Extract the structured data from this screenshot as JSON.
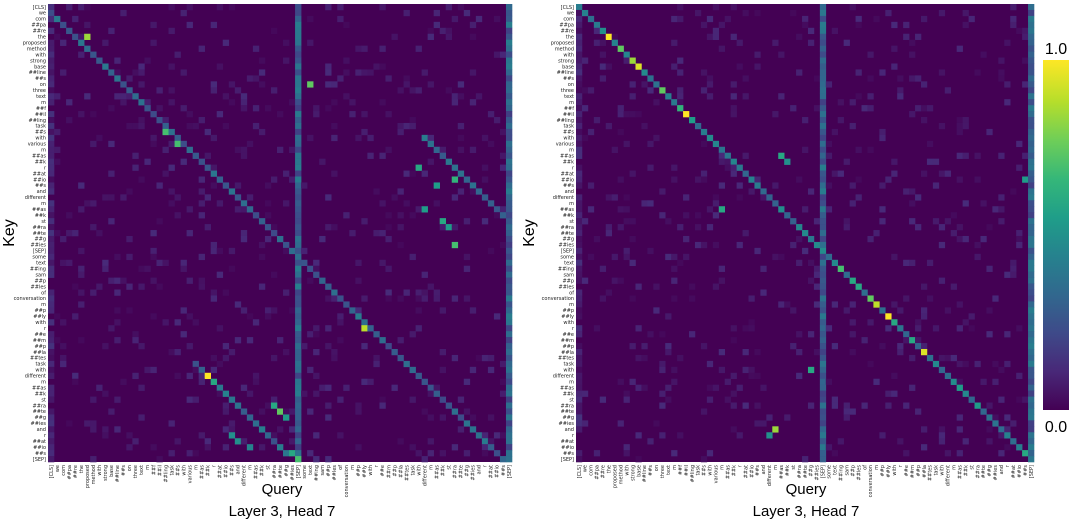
{
  "chart_data": [
    {
      "type": "heatmap",
      "ylabel": "Key",
      "xlabel": "Query",
      "caption": "Layer 3, Head 7",
      "tokens": [
        "[CLS]",
        "we",
        "com",
        "##pa",
        "##re",
        "the",
        "proposed",
        "method",
        "with",
        "strong",
        "base",
        "##line",
        "##s",
        "on",
        "three",
        "text",
        "m",
        "##f",
        "##il",
        "##ling",
        "task",
        "##s",
        "with",
        "various",
        "m",
        "##as",
        "##k",
        "r",
        "##at",
        "##io",
        "##s",
        "and",
        "different",
        "m",
        "##as",
        "##k",
        "st",
        "##ra",
        "##te",
        "##g",
        "##ies",
        "[SEP]",
        "some",
        "text",
        "##ing",
        "sam",
        "##p",
        "##les",
        "of",
        "conversation",
        "m",
        "##p",
        "##ly",
        "with",
        "r",
        "##e",
        "##m",
        "##p",
        "##la",
        "##tes",
        "task",
        "with",
        "different",
        "m",
        "##as",
        "##k",
        "st",
        "##ra",
        "##te",
        "##g",
        "##ies",
        "and",
        "r",
        "##at",
        "##io",
        "##s",
        "[SEP]"
      ],
      "stripe_columns": [
        41,
        76
      ],
      "peaks": [
        {
          "key": 5,
          "query": 6,
          "value": 0.85
        },
        {
          "key": 13,
          "query": 43,
          "value": 0.75
        },
        {
          "key": 21,
          "query": 19,
          "value": 0.7
        },
        {
          "key": 23,
          "query": 21,
          "value": 0.7
        },
        {
          "key": 27,
          "query": 61,
          "value": 0.6
        },
        {
          "key": 29,
          "query": 67,
          "value": 0.65
        },
        {
          "key": 30,
          "query": 64,
          "value": 0.55
        },
        {
          "key": 34,
          "query": 62,
          "value": 0.55
        },
        {
          "key": 36,
          "query": 65,
          "value": 0.6
        },
        {
          "key": 37,
          "query": 66,
          "value": 0.55
        },
        {
          "key": 40,
          "query": 67,
          "value": 0.7
        },
        {
          "key": 54,
          "query": 52,
          "value": 0.9
        },
        {
          "key": 62,
          "query": 26,
          "value": 1.0
        },
        {
          "key": 63,
          "query": 27,
          "value": 0.6
        },
        {
          "key": 67,
          "query": 37,
          "value": 0.6
        },
        {
          "key": 68,
          "query": 38,
          "value": 0.75
        },
        {
          "key": 69,
          "query": 39,
          "value": 0.55
        },
        {
          "key": 72,
          "query": 30,
          "value": 0.5
        },
        {
          "key": 73,
          "query": 31,
          "value": 0.5
        },
        {
          "key": 74,
          "query": 33,
          "value": 0.45
        },
        {
          "key": 75,
          "query": 40,
          "value": 0.6
        },
        {
          "key": 76,
          "query": 41,
          "value": 0.7
        }
      ],
      "vmin": 0.0,
      "vmax": 1.0
    },
    {
      "type": "heatmap",
      "ylabel": "Key",
      "xlabel": "Query",
      "caption": "Layer 3, Head 7",
      "tokens": [
        "[CLS]",
        "we",
        "com",
        "##pa",
        "##re",
        "the",
        "proposed",
        "method",
        "with",
        "strong",
        "base",
        "##line",
        "##s",
        "on",
        "three",
        "text",
        "m",
        "##f",
        "##il",
        "##ling",
        "task",
        "##s",
        "with",
        "various",
        "m",
        "##as",
        "##k",
        "r",
        "##at",
        "##io",
        "##s",
        "and",
        "different",
        "m",
        "##as",
        "##k",
        "st",
        "##ra",
        "##te",
        "##g",
        "##ies",
        "[SEP]",
        "some",
        "text",
        "##ing",
        "sam",
        "##p",
        "##les",
        "of",
        "conversation",
        "m",
        "##p",
        "##ly",
        "with",
        "r",
        "##e",
        "##m",
        "##p",
        "##la",
        "##tes",
        "task",
        "with",
        "different",
        "m",
        "##as",
        "##k",
        "st",
        "##ra",
        "##te",
        "##g",
        "##ies",
        "and",
        "r",
        "##at",
        "##io",
        "##s",
        "[SEP]"
      ],
      "stripe_columns": [
        41,
        76
      ],
      "peaks": [
        {
          "key": 5,
          "query": 5,
          "value": 1.0
        },
        {
          "key": 7,
          "query": 7,
          "value": 0.75
        },
        {
          "key": 9,
          "query": 9,
          "value": 0.85
        },
        {
          "key": 10,
          "query": 10,
          "value": 0.95
        },
        {
          "key": 14,
          "query": 14,
          "value": 0.75
        },
        {
          "key": 17,
          "query": 17,
          "value": 0.65
        },
        {
          "key": 18,
          "query": 18,
          "value": 1.0
        },
        {
          "key": 19,
          "query": 19,
          "value": 0.55
        },
        {
          "key": 25,
          "query": 34,
          "value": 0.6
        },
        {
          "key": 26,
          "query": 35,
          "value": 0.5
        },
        {
          "key": 29,
          "query": 75,
          "value": 0.55
        },
        {
          "key": 34,
          "query": 24,
          "value": 0.6
        },
        {
          "key": 44,
          "query": 44,
          "value": 0.7
        },
        {
          "key": 46,
          "query": 46,
          "value": 0.6
        },
        {
          "key": 47,
          "query": 47,
          "value": 0.6
        },
        {
          "key": 49,
          "query": 49,
          "value": 0.75
        },
        {
          "key": 50,
          "query": 50,
          "value": 0.9
        },
        {
          "key": 52,
          "query": 52,
          "value": 1.0
        },
        {
          "key": 53,
          "query": 53,
          "value": 0.6
        },
        {
          "key": 56,
          "query": 56,
          "value": 0.6
        },
        {
          "key": 58,
          "query": 58,
          "value": 0.95
        },
        {
          "key": 61,
          "query": 39,
          "value": 0.6
        },
        {
          "key": 64,
          "query": 64,
          "value": 0.55
        },
        {
          "key": 67,
          "query": 67,
          "value": 0.55
        },
        {
          "key": 71,
          "query": 33,
          "value": 0.85
        },
        {
          "key": 72,
          "query": 32,
          "value": 0.5
        },
        {
          "key": 75,
          "query": 75,
          "value": 0.6
        }
      ],
      "vmin": 0.0,
      "vmax": 1.0
    }
  ],
  "colorbar": {
    "max_label": "1.0",
    "min_label": "0.0",
    "colors": [
      "#440154",
      "#482878",
      "#3e4a89",
      "#31688e",
      "#26828e",
      "#1f9e89",
      "#35b779",
      "#6ece58",
      "#b5de2b",
      "#fde725"
    ]
  }
}
